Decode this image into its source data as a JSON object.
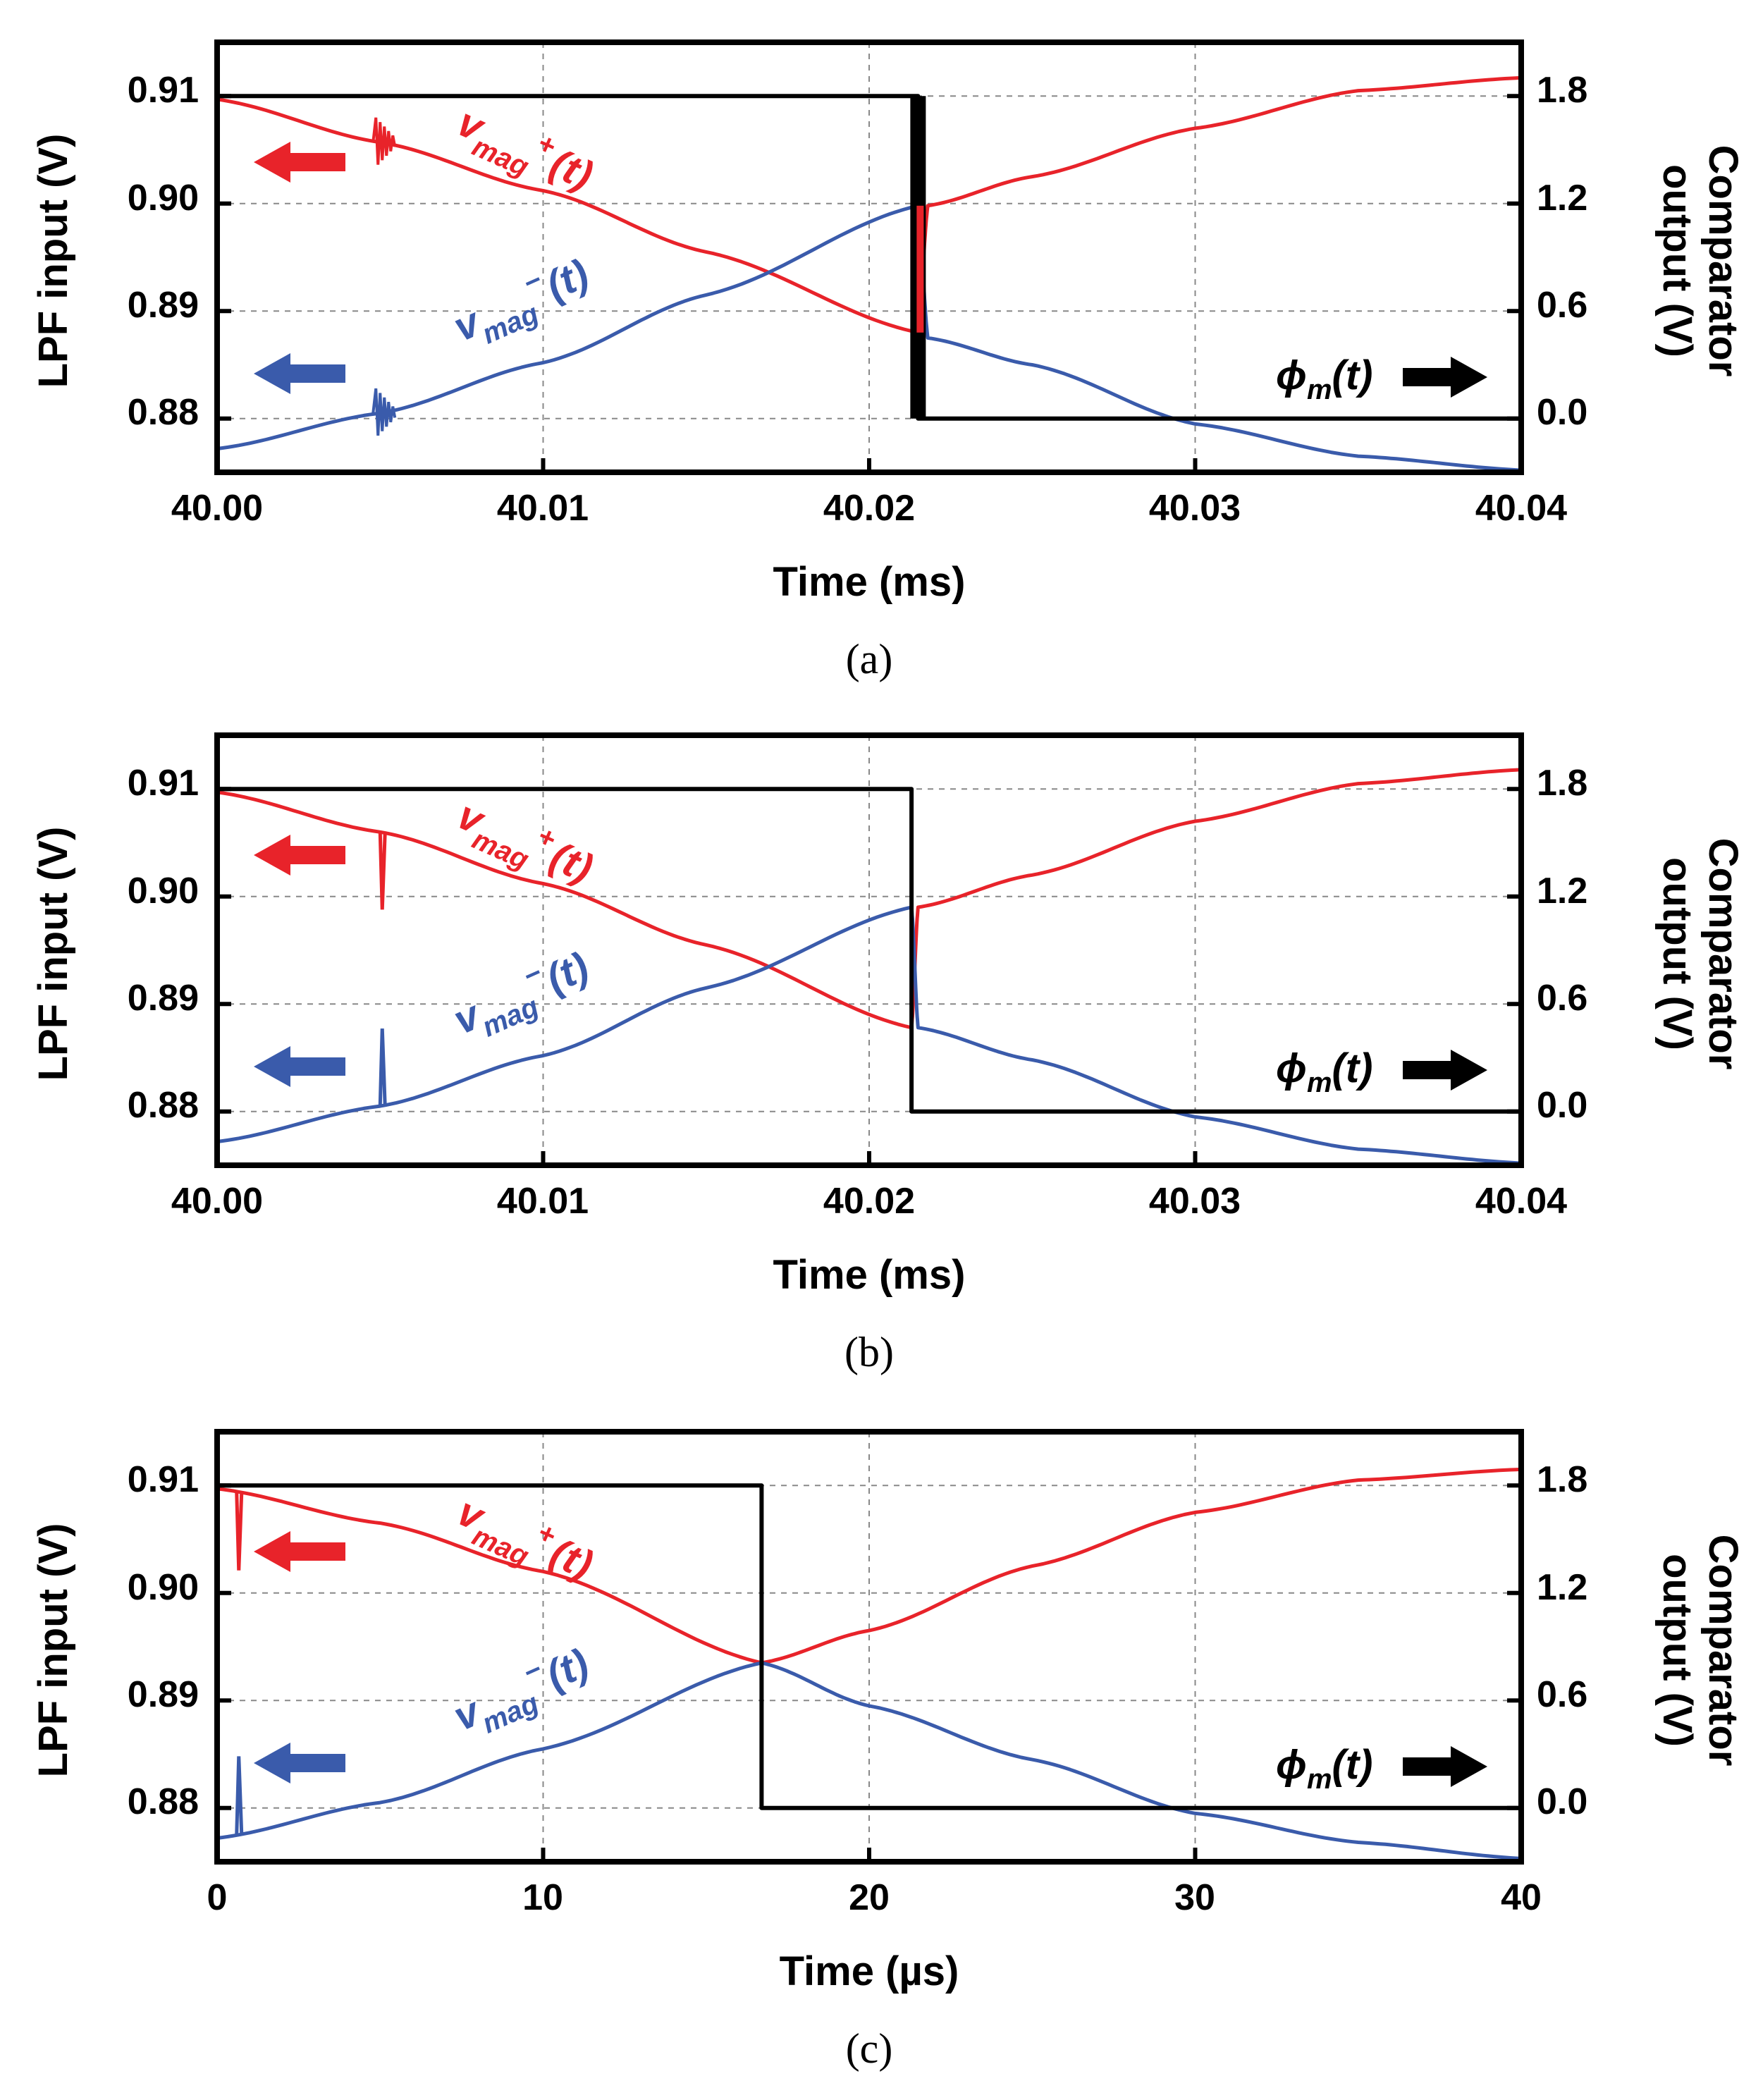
{
  "colors": {
    "vmag_plus": "#e8232a",
    "vmag_minus": "#3a5bab",
    "phi": "#000000",
    "grid": "#888888"
  },
  "labels": {
    "vmag_plus_main": "v",
    "vmag_plus_sub": "mag",
    "vmag_plus_sup": "+",
    "vmag_plus_arg": "(t)",
    "vmag_minus_main": "v",
    "vmag_minus_sub": "mag",
    "vmag_minus_sup": "−",
    "vmag_minus_arg": "(t)",
    "phi_main": "ϕ",
    "phi_sub": "m",
    "phi_arg": "(t)"
  },
  "chart_data": [
    {
      "type": "line",
      "caption": "(a)",
      "xlabel": "Time (ms)",
      "ylabel": "LPF input (V)",
      "y2label_line1": "Comparator",
      "y2label_line2": "output (V)",
      "xlim": [
        40.0,
        40.04
      ],
      "ylim": [
        0.875,
        0.915
      ],
      "y2lim": [
        -0.3,
        2.1
      ],
      "xticks": [
        "40.00",
        "40.01",
        "40.02",
        "40.03",
        "40.04"
      ],
      "yticks": [
        "0.91",
        "0.90",
        "0.89",
        "0.88"
      ],
      "y2ticks": [
        "1.8",
        "1.2",
        "0.6",
        "0.0"
      ],
      "switch_x": 40.0215,
      "glitch_x": 40.005,
      "glitch_type": "ringing",
      "series": [
        {
          "name": "vmag+(t)",
          "axis": "left",
          "points": [
            [
              40.0,
              0.9097
            ],
            [
              40.005,
              0.9057
            ],
            [
              40.01,
              0.9012
            ],
            [
              40.015,
              0.8955
            ],
            [
              40.0215,
              0.888
            ],
            [
              40.0218,
              0.8998
            ],
            [
              40.025,
              0.9025
            ],
            [
              40.03,
              0.907
            ],
            [
              40.035,
              0.9105
            ],
            [
              40.04,
              0.9117
            ]
          ]
        },
        {
          "name": "vmag-(t)",
          "axis": "left",
          "points": [
            [
              40.0,
              0.8772
            ],
            [
              40.005,
              0.8805
            ],
            [
              40.01,
              0.8852
            ],
            [
              40.015,
              0.8915
            ],
            [
              40.0215,
              0.8998
            ],
            [
              40.0218,
              0.8875
            ],
            [
              40.025,
              0.885
            ],
            [
              40.03,
              0.8795
            ],
            [
              40.035,
              0.8765
            ],
            [
              40.04,
              0.8752
            ]
          ]
        },
        {
          "name": "phi_m(t)",
          "axis": "right",
          "points": [
            [
              40.0,
              1.8
            ],
            [
              40.0215,
              1.8
            ],
            [
              40.0215,
              0.0
            ],
            [
              40.04,
              0.0
            ]
          ]
        }
      ]
    },
    {
      "type": "line",
      "caption": "(b)",
      "xlabel": "Time (ms)",
      "ylabel": "LPF input (V)",
      "y2label_line1": "Comparator",
      "y2label_line2": "output (V)",
      "xlim": [
        40.0,
        40.04
      ],
      "ylim": [
        0.875,
        0.915
      ],
      "y2lim": [
        -0.3,
        2.1
      ],
      "xticks": [
        "40.00",
        "40.01",
        "40.02",
        "40.03",
        "40.04"
      ],
      "yticks": [
        "0.91",
        "0.90",
        "0.89",
        "0.88"
      ],
      "y2ticks": [
        "1.8",
        "1.2",
        "0.6",
        "0.0"
      ],
      "switch_x": 40.0213,
      "glitch_x": 40.005,
      "glitch_type": "spike",
      "series": [
        {
          "name": "vmag+(t)",
          "axis": "left",
          "points": [
            [
              40.0,
              0.9097
            ],
            [
              40.005,
              0.906
            ],
            [
              40.01,
              0.9012
            ],
            [
              40.015,
              0.8955
            ],
            [
              40.0213,
              0.8878
            ],
            [
              40.0215,
              0.899
            ],
            [
              40.025,
              0.902
            ],
            [
              40.03,
              0.907
            ],
            [
              40.035,
              0.9105
            ],
            [
              40.04,
              0.9118
            ]
          ]
        },
        {
          "name": "vmag-(t)",
          "axis": "left",
          "points": [
            [
              40.0,
              0.8772
            ],
            [
              40.005,
              0.8805
            ],
            [
              40.01,
              0.8852
            ],
            [
              40.015,
              0.8915
            ],
            [
              40.0213,
              0.899
            ],
            [
              40.0215,
              0.8878
            ],
            [
              40.025,
              0.8848
            ],
            [
              40.03,
              0.8795
            ],
            [
              40.035,
              0.8765
            ],
            [
              40.04,
              0.8752
            ]
          ]
        },
        {
          "name": "phi_m(t)",
          "axis": "right",
          "points": [
            [
              40.0,
              1.8
            ],
            [
              40.0213,
              1.8
            ],
            [
              40.0213,
              0.0
            ],
            [
              40.04,
              0.0
            ]
          ]
        }
      ]
    },
    {
      "type": "line",
      "caption": "(c)",
      "xlabel": "Time (µs)",
      "ylabel": "LPF input (V)",
      "y2label_line1": "Comparator",
      "y2label_line2": "output (V)",
      "xlim": [
        0,
        40
      ],
      "ylim": [
        0.875,
        0.915
      ],
      "y2lim": [
        -0.3,
        2.1
      ],
      "xticks": [
        "0",
        "10",
        "20",
        "30",
        "40"
      ],
      "yticks": [
        "0.91",
        "0.90",
        "0.89",
        "0.88"
      ],
      "y2ticks": [
        "1.8",
        "1.2",
        "0.6",
        "0.0"
      ],
      "switch_x": 16.7,
      "glitch_x": 0.6,
      "glitch_type": "spike",
      "series": [
        {
          "name": "vmag+(t)",
          "axis": "left",
          "points": [
            [
              0,
              0.9097
            ],
            [
              5,
              0.9065
            ],
            [
              10,
              0.902
            ],
            [
              16.7,
              0.8935
            ],
            [
              20,
              0.8965
            ],
            [
              25,
              0.9025
            ],
            [
              30,
              0.9075
            ],
            [
              35,
              0.9105
            ],
            [
              40,
              0.9115
            ]
          ]
        },
        {
          "name": "vmag-(t)",
          "axis": "left",
          "points": [
            [
              0,
              0.8772
            ],
            [
              5,
              0.8805
            ],
            [
              10,
              0.8855
            ],
            [
              16.7,
              0.8935
            ],
            [
              20,
              0.8895
            ],
            [
              25,
              0.8845
            ],
            [
              30,
              0.8795
            ],
            [
              35,
              0.8768
            ],
            [
              40,
              0.8753
            ]
          ]
        },
        {
          "name": "phi_m(t)",
          "axis": "right",
          "points": [
            [
              0,
              1.8
            ],
            [
              16.7,
              1.8
            ],
            [
              16.7,
              0.0
            ],
            [
              40,
              0.0
            ]
          ]
        }
      ]
    }
  ]
}
